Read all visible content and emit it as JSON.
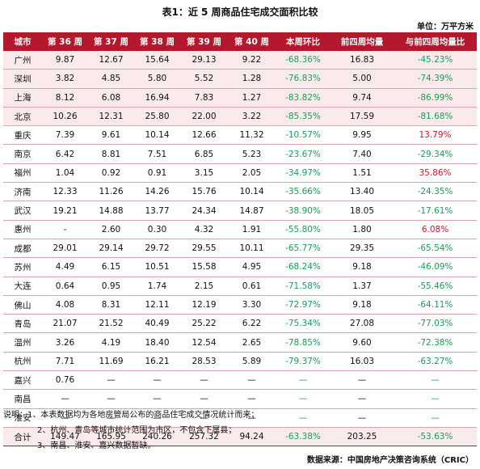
{
  "title": "表1：近 5 周商品住宅成交面积比较",
  "unit": "单位：万平方米",
  "columns": [
    "城市",
    "第 36 周",
    "第 37 周",
    "第 38 周",
    "第 39 周",
    "第 40 周",
    "本周环比",
    "前四周均量",
    "与前四周均量比"
  ],
  "rows": [
    {
      "city": "广州",
      "w36": "9.87",
      "w37": "12.67",
      "w38": "15.64",
      "w39": "29.13",
      "w40": "9.22",
      "wow": "-68.36%",
      "avg4": "16.83",
      "vs_avg": "-45.23%",
      "shade": true
    },
    {
      "city": "深圳",
      "w36": "3.82",
      "w37": "4.85",
      "w38": "5.80",
      "w39": "5.52",
      "w40": "1.28",
      "wow": "-76.83%",
      "avg4": "5.00",
      "vs_avg": "-74.39%",
      "shade": true
    },
    {
      "city": "上海",
      "w36": "8.12",
      "w37": "6.08",
      "w38": "16.94",
      "w39": "7.83",
      "w40": "1.27",
      "wow": "-83.82%",
      "avg4": "9.74",
      "vs_avg": "-86.99%",
      "shade": true
    },
    {
      "city": "北京",
      "w36": "10.26",
      "w37": "12.31",
      "w38": "25.80",
      "w39": "22.00",
      "w40": "3.22",
      "wow": "-85.35%",
      "avg4": "17.59",
      "vs_avg": "-81.68%",
      "shade": true
    },
    {
      "city": "重庆",
      "w36": "7.39",
      "w37": "9.61",
      "w38": "10.14",
      "w39": "12.66",
      "w40": "11.32",
      "wow": "-10.57%",
      "avg4": "9.95",
      "vs_avg": "13.79%",
      "shade": false
    },
    {
      "city": "南京",
      "w36": "6.42",
      "w37": "8.81",
      "w38": "7.51",
      "w39": "6.85",
      "w40": "5.23",
      "wow": "-23.67%",
      "avg4": "7.40",
      "vs_avg": "-29.34%",
      "shade": false
    },
    {
      "city": "福州",
      "w36": "1.04",
      "w37": "0.92",
      "w38": "0.91",
      "w39": "3.15",
      "w40": "2.05",
      "wow": "-34.97%",
      "avg4": "1.51",
      "vs_avg": "35.86%",
      "shade": false
    },
    {
      "city": "济南",
      "w36": "12.33",
      "w37": "11.26",
      "w38": "14.26",
      "w39": "15.76",
      "w40": "10.14",
      "wow": "-35.66%",
      "avg4": "13.40",
      "vs_avg": "-24.35%",
      "shade": false
    },
    {
      "city": "武汉",
      "w36": "19.21",
      "w37": "14.88",
      "w38": "13.77",
      "w39": "24.34",
      "w40": "14.87",
      "wow": "-38.90%",
      "avg4": "18.05",
      "vs_avg": "-17.61%",
      "shade": false
    },
    {
      "city": "惠州",
      "w36": "-",
      "w37": "2.60",
      "w38": "0.30",
      "w39": "4.32",
      "w40": "1.91",
      "wow": "-55.80%",
      "avg4": "1.80",
      "vs_avg": "6.08%",
      "shade": false
    },
    {
      "city": "成都",
      "w36": "29.01",
      "w37": "29.14",
      "w38": "29.72",
      "w39": "29.55",
      "w40": "10.11",
      "wow": "-65.77%",
      "avg4": "29.35",
      "vs_avg": "-65.54%",
      "shade": false
    },
    {
      "city": "苏州",
      "w36": "4.49",
      "w37": "6.15",
      "w38": "10.51",
      "w39": "15.58",
      "w40": "4.95",
      "wow": "-68.24%",
      "avg4": "9.18",
      "vs_avg": "-46.09%",
      "shade": false
    },
    {
      "city": "大连",
      "w36": "0.64",
      "w37": "0.95",
      "w38": "1.74",
      "w39": "2.15",
      "w40": "0.61",
      "wow": "-71.58%",
      "avg4": "1.37",
      "vs_avg": "-55.46%",
      "shade": false
    },
    {
      "city": "佛山",
      "w36": "4.08",
      "w37": "8.31",
      "w38": "12.11",
      "w39": "12.19",
      "w40": "3.30",
      "wow": "-72.97%",
      "avg4": "9.18",
      "vs_avg": "-64.11%",
      "shade": false
    },
    {
      "city": "青岛",
      "w36": "21.07",
      "w37": "21.52",
      "w38": "40.49",
      "w39": "25.22",
      "w40": "6.22",
      "wow": "-75.34%",
      "avg4": "27.08",
      "vs_avg": "-77.03%",
      "shade": false
    },
    {
      "city": "温州",
      "w36": "3.26",
      "w37": "4.19",
      "w38": "18.40",
      "w39": "12.54",
      "w40": "2.65",
      "wow": "-78.85%",
      "avg4": "9.60",
      "vs_avg": "-72.38%",
      "shade": false
    },
    {
      "city": "杭州",
      "w36": "7.71",
      "w37": "11.69",
      "w38": "16.21",
      "w39": "28.53",
      "w40": "5.89",
      "wow": "-79.37%",
      "avg4": "16.03",
      "vs_avg": "-63.27%",
      "shade": false
    },
    {
      "city": "嘉兴",
      "w36": "0.76",
      "w37": "—",
      "w38": "—",
      "w39": "—",
      "w40": "—",
      "wow": "—",
      "avg4": "—",
      "vs_avg": "—",
      "shade": false
    },
    {
      "city": "南昌",
      "w36": "—",
      "w37": "—",
      "w38": "—",
      "w39": "—",
      "w40": "—",
      "wow": "—",
      "avg4": "—",
      "vs_avg": "—",
      "shade": false
    },
    {
      "city": "淮安",
      "w36": "—",
      "w37": "—",
      "w38": "—",
      "w39": "—",
      "w40": "—",
      "wow": "—",
      "avg4": "—",
      "vs_avg": "—",
      "shade": false
    }
  ],
  "total": {
    "city": "合计",
    "w36": "149.47",
    "w37": "165.95",
    "w38": "240.26",
    "w39": "257.32",
    "w40": "94.24",
    "wow": "-63.38%",
    "avg4": "203.25",
    "vs_avg": "-53.63%"
  },
  "notes": [
    "说明：1、本表数据均为各地房管局公布的商品住宅成交情况统计而来；",
    "2、杭州、青岛等城市统计范围为市区，不包含下属县；",
    "3、南昌、淮安、嘉兴数据暂缺。"
  ],
  "source": "数据来源：中国房地产决策咨询系统（CRIC）",
  "colors": {
    "header_bg": "#b4182d",
    "shade_bg": "#fbeaec",
    "positive": "#e0102a",
    "negative": "#18a055"
  }
}
